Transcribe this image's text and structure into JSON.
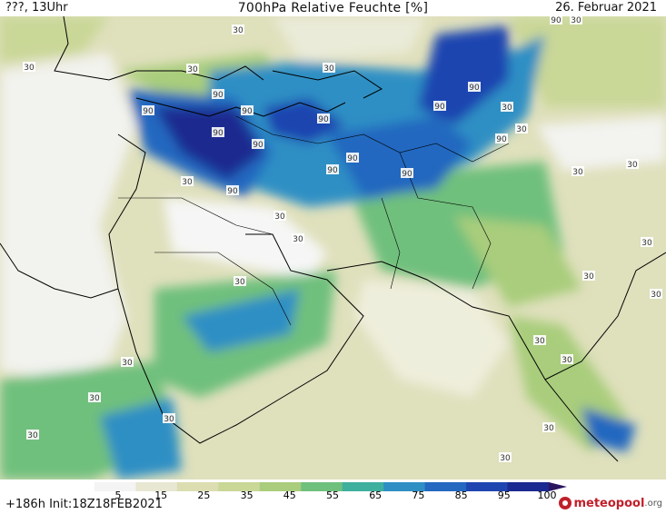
{
  "header": {
    "left": "???, 13Uhr",
    "center": "700hPa Relative Feuchte [%]",
    "right": "26. Februar 2021"
  },
  "footer": {
    "left": "+186h  Init:18Z18FEB2021",
    "logo_name": "meteopool",
    "logo_tld": ".org"
  },
  "legend": {
    "ticks": [
      "5",
      "15",
      "25",
      "35",
      "45",
      "55",
      "65",
      "75",
      "85",
      "95",
      "100"
    ],
    "colors": [
      "#f4f4f4",
      "#e7e7d2",
      "#dcddb1",
      "#c9d797",
      "#a9cd7c",
      "#6fc07d",
      "#3fb09d",
      "#2f8fc4",
      "#2468c0",
      "#1f45b0",
      "#1a2a90",
      "#2a1560"
    ]
  },
  "map": {
    "contour_labels": [
      "90",
      "30"
    ]
  }
}
